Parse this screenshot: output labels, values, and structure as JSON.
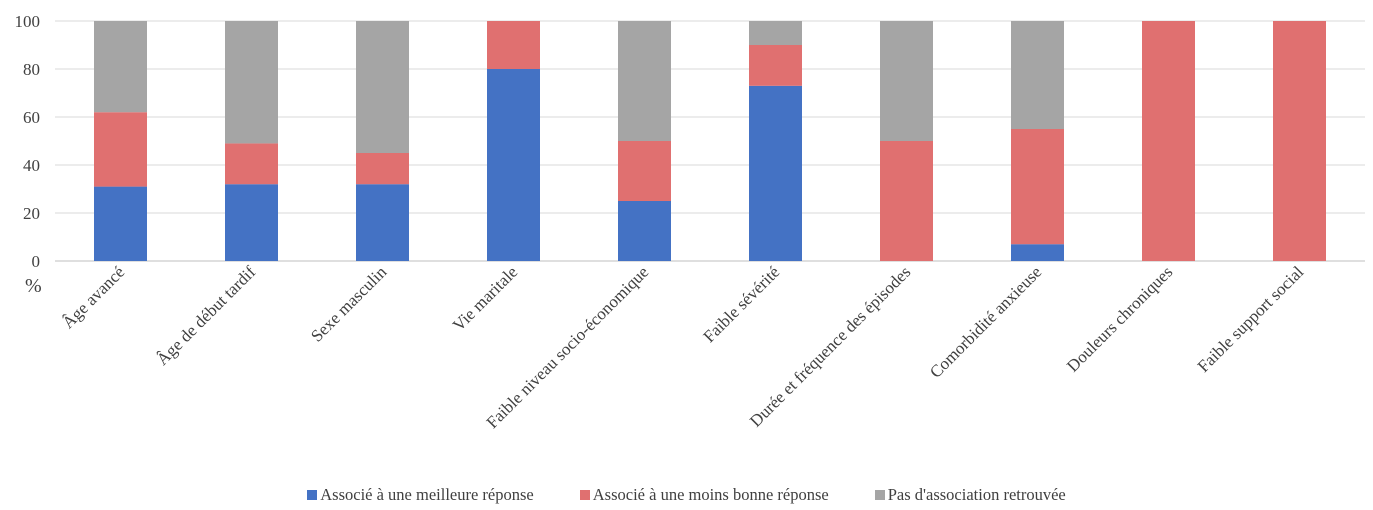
{
  "chart_data": {
    "type": "bar",
    "stacked": true,
    "title": "",
    "xlabel": "",
    "ylabel": "%",
    "ylim": [
      0,
      100
    ],
    "yticks": [
      0,
      20,
      40,
      60,
      80,
      100
    ],
    "grid": true,
    "legend_position": "bottom",
    "categories": [
      "Âge avancé",
      "Âge de début tardif",
      "Sexe masculin",
      "Vie maritale",
      "Faible niveau socio-économique",
      "Faible sévérité",
      "Durée et fréquence des épisodes",
      "Comorbidité anxieuse",
      "Douleurs chroniques",
      "Faible support social"
    ],
    "series": [
      {
        "name": "Associé à une meilleure réponse",
        "color": "#4472C4",
        "values": [
          31,
          32,
          32,
          80,
          25,
          73,
          0,
          7,
          0,
          0
        ]
      },
      {
        "name": "Associé à une moins bonne réponse",
        "color": "#E07070",
        "values": [
          31,
          17,
          13,
          20,
          25,
          17,
          50,
          48,
          100,
          100
        ]
      },
      {
        "name": "Pas d'association retrouvée",
        "color": "#A5A5A5",
        "values": [
          38,
          51,
          55,
          0,
          50,
          10,
          50,
          45,
          0,
          0
        ]
      }
    ]
  }
}
